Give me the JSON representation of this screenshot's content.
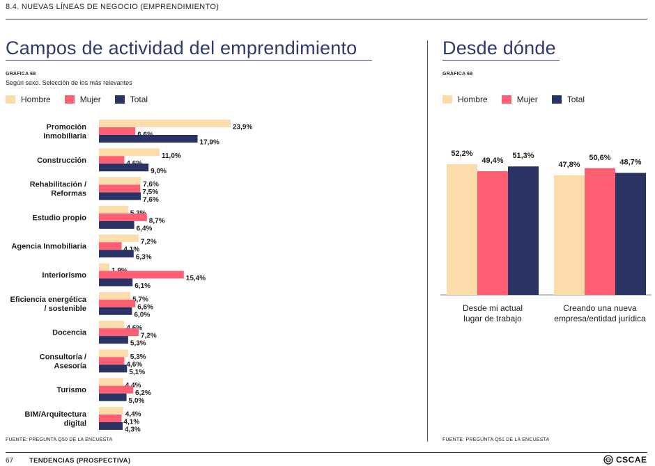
{
  "header": {
    "section": "8.4. NUEVAS LÍNEAS DE NEGOCIO (EMPRENDIMIENTO)"
  },
  "colors": {
    "hombre": "#fddcab",
    "mujer": "#ff5f73",
    "total": "#2a3464",
    "title": "#2e3a6e"
  },
  "left": {
    "title": "Campos de actividad del emprendimiento",
    "grafica": "GRÁFICA 68",
    "subtitle": "Según sexo. Selección de los más relevantes",
    "legend": [
      "Hombre",
      "Mujer",
      "Total"
    ],
    "source": "FUENTE: PREGUNTA Q50 DE LA ENCUESTA"
  },
  "right": {
    "title": "Desde dónde",
    "grafica": "GRÁFICA 69",
    "legend": [
      "Hombre",
      "Mujer",
      "Total"
    ],
    "source": "FUENTE: PREGUNTA Q51 DE LA ENCUESTA"
  },
  "footer": {
    "page": "67",
    "label": "TENDENCIAS (PROSPECTIVA)",
    "logo": "CSCAE"
  },
  "chart_data": [
    {
      "type": "bar",
      "orientation": "horizontal",
      "unit": "%",
      "categories": [
        [
          "Promoción",
          "Inmobiliaria"
        ],
        [
          "Construcción"
        ],
        [
          "Rehabilitación /",
          "Reformas"
        ],
        [
          "Estudio propio"
        ],
        [
          "Agencia Inmobiliaria"
        ],
        [
          "Interiorismo"
        ],
        [
          "Eficiencia energética",
          "/ sostenible"
        ],
        [
          "Docencia"
        ],
        [
          "Consultoría /",
          "Asesoría"
        ],
        [
          "Turismo"
        ],
        [
          "BIM/Arquitectura",
          "digital"
        ]
      ],
      "series": [
        {
          "name": "Hombre",
          "values": [
            23.9,
            11.0,
            7.6,
            5.3,
            7.2,
            1.9,
            5.7,
            4.6,
            5.3,
            4.4,
            4.4
          ]
        },
        {
          "name": "Mujer",
          "values": [
            6.6,
            4.6,
            7.5,
            8.7,
            4.1,
            15.4,
            6.6,
            7.2,
            4.6,
            6.2,
            4.1
          ]
        },
        {
          "name": "Total",
          "values": [
            17.9,
            9.0,
            7.6,
            6.4,
            6.3,
            6.1,
            6.0,
            5.3,
            5.1,
            5.0,
            4.3
          ]
        }
      ]
    },
    {
      "type": "bar",
      "orientation": "vertical",
      "unit": "%",
      "categories": [
        [
          "Desde mi actual",
          "lugar de trabajo"
        ],
        [
          "Creando una nueva",
          "empresa/entidad jurídica"
        ]
      ],
      "series": [
        {
          "name": "Hombre",
          "values": [
            52.2,
            47.8
          ]
        },
        {
          "name": "Mujer",
          "values": [
            49.4,
            50.6
          ]
        },
        {
          "name": "Total",
          "values": [
            51.3,
            48.7
          ]
        }
      ]
    }
  ]
}
